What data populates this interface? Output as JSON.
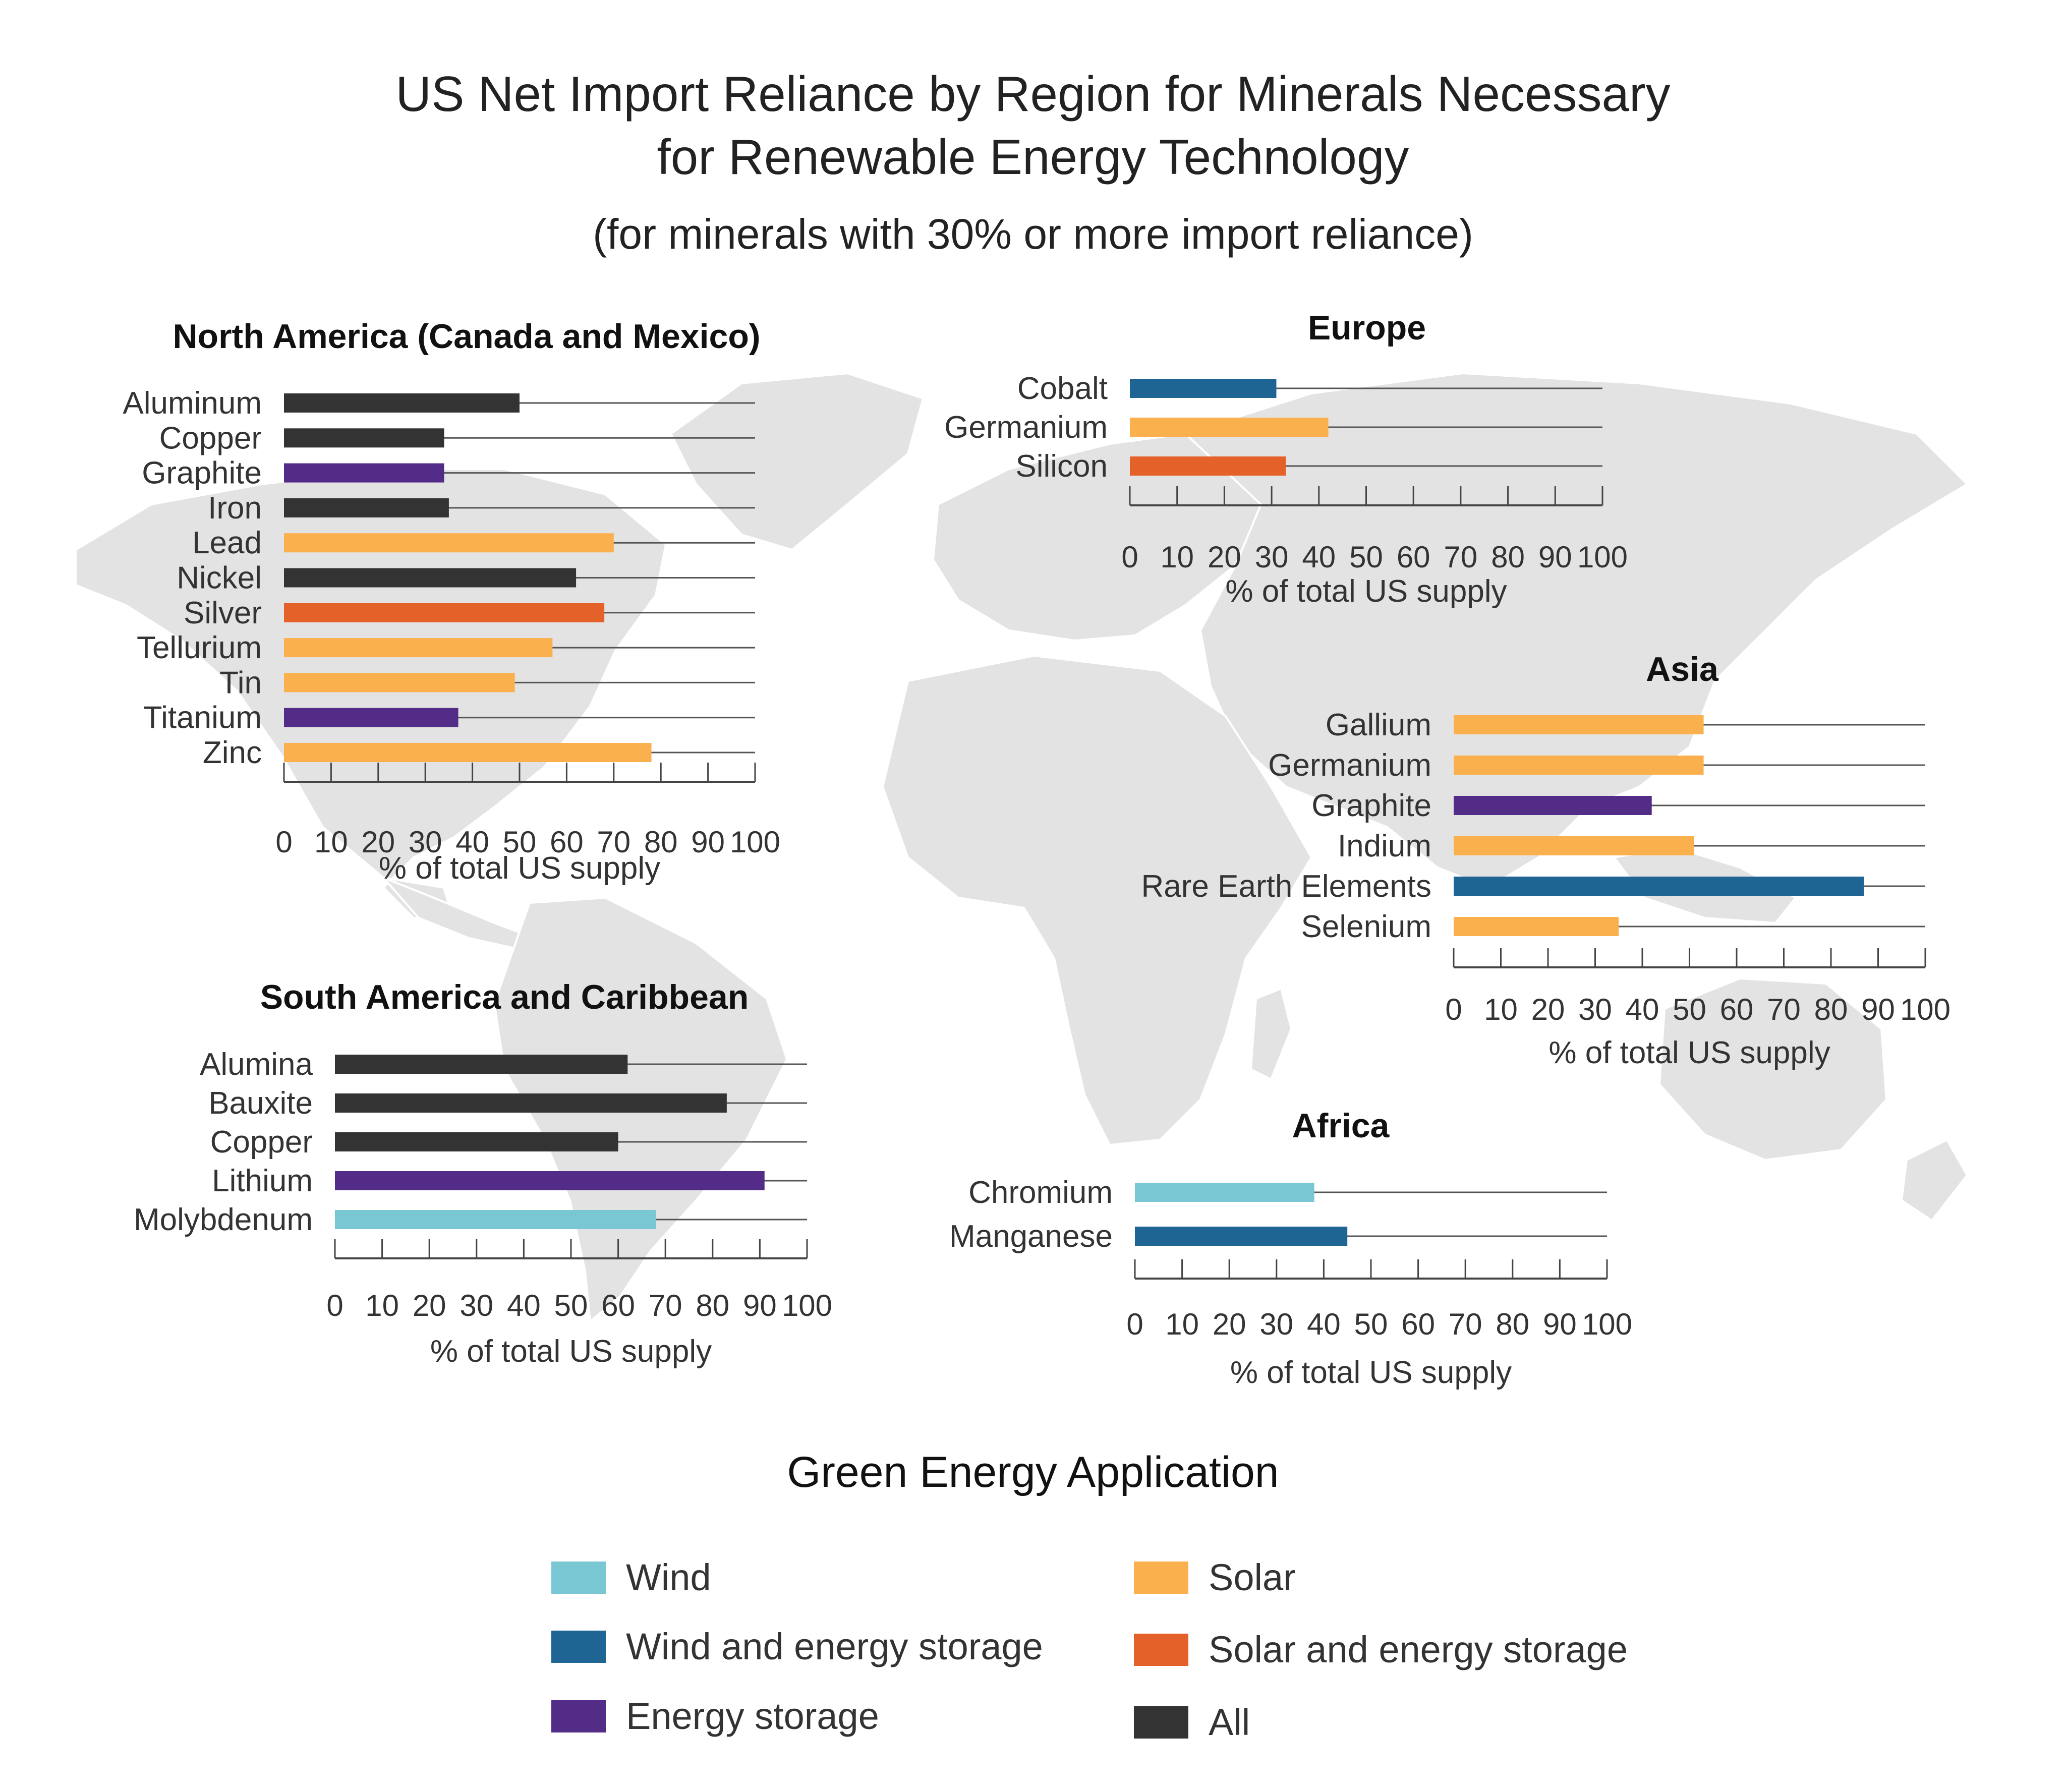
{
  "title_line1": "US Net Import Reliance by Region for Minerals Necessary",
  "title_line2": "for Renewable Energy Technology",
  "subtitle": "(for minerals with 30% or more import reliance)",
  "colors": {
    "wind": "#7ac7d4",
    "wind_storage": "#1f6594",
    "energy_storage": "#532c87",
    "solar": "#fbb04e",
    "solar_storage": "#e5612a",
    "all": "#333333",
    "map_land": "#e3e3e3",
    "axis": "#444444"
  },
  "legend": {
    "title": "Green Energy Application",
    "items": [
      {
        "key": "wind",
        "label": "Wind"
      },
      {
        "key": "wind_storage",
        "label": "Wind and energy storage"
      },
      {
        "key": "energy_storage",
        "label": "Energy storage"
      },
      {
        "key": "solar",
        "label": "Solar"
      },
      {
        "key": "solar_storage",
        "label": "Solar and energy storage"
      },
      {
        "key": "all",
        "label": "All"
      }
    ]
  },
  "chart_data": [
    {
      "type": "bar",
      "orientation": "horizontal",
      "title": "North America (Canada and Mexico)",
      "xlabel": "% of total US supply",
      "xlim": [
        0,
        100
      ],
      "ticks": [
        "0",
        "10",
        "20",
        "30",
        "40",
        "50",
        "60",
        "70",
        "80",
        "90",
        "100"
      ],
      "categories": [
        "Aluminum",
        "Copper",
        "Graphite",
        "Iron",
        "Lead",
        "Nickel",
        "Silver",
        "Tellurium",
        "Tin",
        "Titanium",
        "Zinc"
      ],
      "values": [
        50,
        34,
        34,
        35,
        70,
        62,
        68,
        57,
        49,
        37,
        78
      ],
      "application": [
        "all",
        "all",
        "energy_storage",
        "all",
        "solar",
        "all",
        "solar_storage",
        "solar",
        "solar",
        "energy_storage",
        "solar"
      ]
    },
    {
      "type": "bar",
      "orientation": "horizontal",
      "title": "Europe",
      "xlabel": "% of total US supply",
      "xlim": [
        0,
        100
      ],
      "ticks": [
        "0",
        "10",
        "20",
        "30",
        "40",
        "50",
        "60",
        "70",
        "80",
        "90",
        "100"
      ],
      "categories": [
        "Cobalt",
        "Germanium",
        "Silicon"
      ],
      "values": [
        31,
        42,
        33
      ],
      "application": [
        "wind_storage",
        "solar",
        "solar_storage"
      ]
    },
    {
      "type": "bar",
      "orientation": "horizontal",
      "title": "Asia",
      "xlabel": "% of total US supply",
      "xlim": [
        0,
        100
      ],
      "ticks": [
        "0",
        "10",
        "20",
        "30",
        "40",
        "50",
        "60",
        "70",
        "80",
        "90",
        "100"
      ],
      "categories": [
        "Gallium",
        "Germanium",
        "Graphite",
        "Indium",
        "Rare Earth Elements",
        "Selenium"
      ],
      "values": [
        53,
        53,
        42,
        51,
        87,
        35
      ],
      "application": [
        "solar",
        "solar",
        "energy_storage",
        "solar",
        "wind_storage",
        "solar"
      ]
    },
    {
      "type": "bar",
      "orientation": "horizontal",
      "title": "South America and Caribbean",
      "xlabel": "% of total US supply",
      "xlim": [
        0,
        100
      ],
      "ticks": [
        "0",
        "10",
        "20",
        "30",
        "40",
        "50",
        "60",
        "70",
        "80",
        "90",
        "100"
      ],
      "categories": [
        "Alumina",
        "Bauxite",
        "Copper",
        "Lithium",
        "Molybdenum"
      ],
      "values": [
        62,
        83,
        60,
        91,
        68
      ],
      "application": [
        "all",
        "all",
        "all",
        "energy_storage",
        "wind"
      ]
    },
    {
      "type": "bar",
      "orientation": "horizontal",
      "title": "Africa",
      "xlabel": "% of total US supply",
      "xlim": [
        0,
        100
      ],
      "ticks": [
        "0",
        "10",
        "20",
        "30",
        "40",
        "50",
        "60",
        "70",
        "80",
        "90",
        "100"
      ],
      "categories": [
        "Chromium",
        "Manganese"
      ],
      "values": [
        38,
        45
      ],
      "application": [
        "wind",
        "wind_storage"
      ]
    }
  ]
}
